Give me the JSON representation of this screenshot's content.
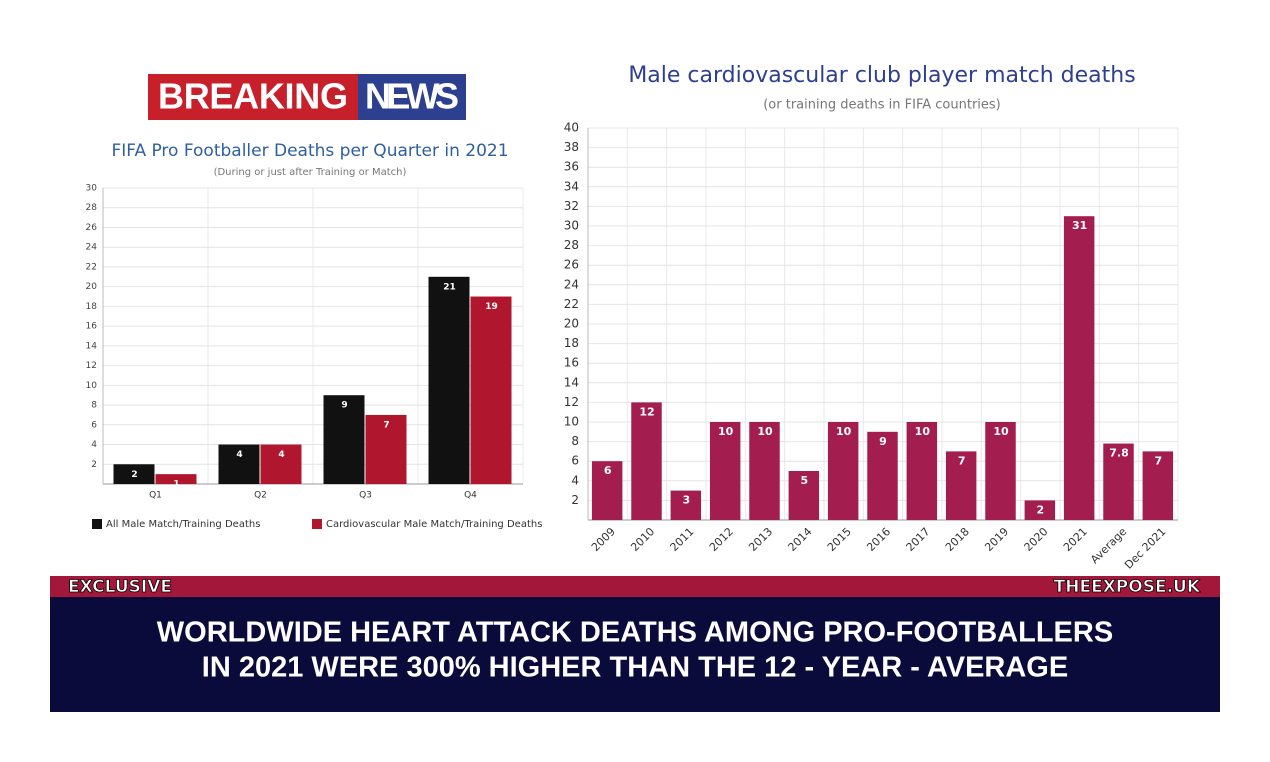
{
  "header": {
    "badge": [
      "BREAKING",
      "NEWS"
    ]
  },
  "chart_data": [
    {
      "type": "bar",
      "title": "FIFA Pro Footballer Deaths per Quarter in 2021",
      "subtitle": "(During or just after Training or Match)",
      "categories": [
        "Q1",
        "Q2",
        "Q3",
        "Q4"
      ],
      "series": [
        {
          "name": "All Male Match/Training Deaths",
          "color": "#111111",
          "values": [
            2,
            4,
            9,
            21
          ]
        },
        {
          "name": "Cardiovascular Male Match/Training Deaths",
          "color": "#b0172f",
          "values": [
            1,
            4,
            7,
            19
          ]
        }
      ],
      "ylim": [
        0,
        30
      ],
      "yticks": [
        2,
        4,
        6,
        8,
        10,
        12,
        14,
        16,
        18,
        20,
        22,
        24,
        26,
        28,
        30
      ],
      "grid": true,
      "data_labels": true,
      "legend": "bottom"
    },
    {
      "type": "bar",
      "title": "Male cardiovascular club player match deaths",
      "subtitle": "(or training deaths in FIFA countries)",
      "categories": [
        "2009",
        "2010",
        "2011",
        "2012",
        "2013",
        "2014",
        "2015",
        "2016",
        "2017",
        "2018",
        "2019",
        "2020",
        "2021",
        "Average",
        "Dec 2021"
      ],
      "values": [
        6,
        12,
        3,
        10,
        10,
        5,
        10,
        9,
        10,
        7,
        10,
        2,
        31,
        7.8,
        7
      ],
      "color": "#a31d4f",
      "ylim": [
        0,
        40
      ],
      "yticks": [
        2,
        4,
        6,
        8,
        10,
        12,
        14,
        16,
        18,
        20,
        22,
        24,
        26,
        28,
        30,
        32,
        34,
        36,
        38,
        40
      ],
      "grid": true,
      "data_labels": true
    }
  ],
  "banner": {
    "tag": "EXCLUSIVE",
    "source": "THEEXPOSE.UK",
    "headline": [
      "WORLDWIDE HEART ATTACK DEATHS AMONG PRO-FOOTBALLERS",
      "IN 2021 WERE 300% HIGHER THAN THE 12 - YEAR - AVERAGE"
    ]
  }
}
